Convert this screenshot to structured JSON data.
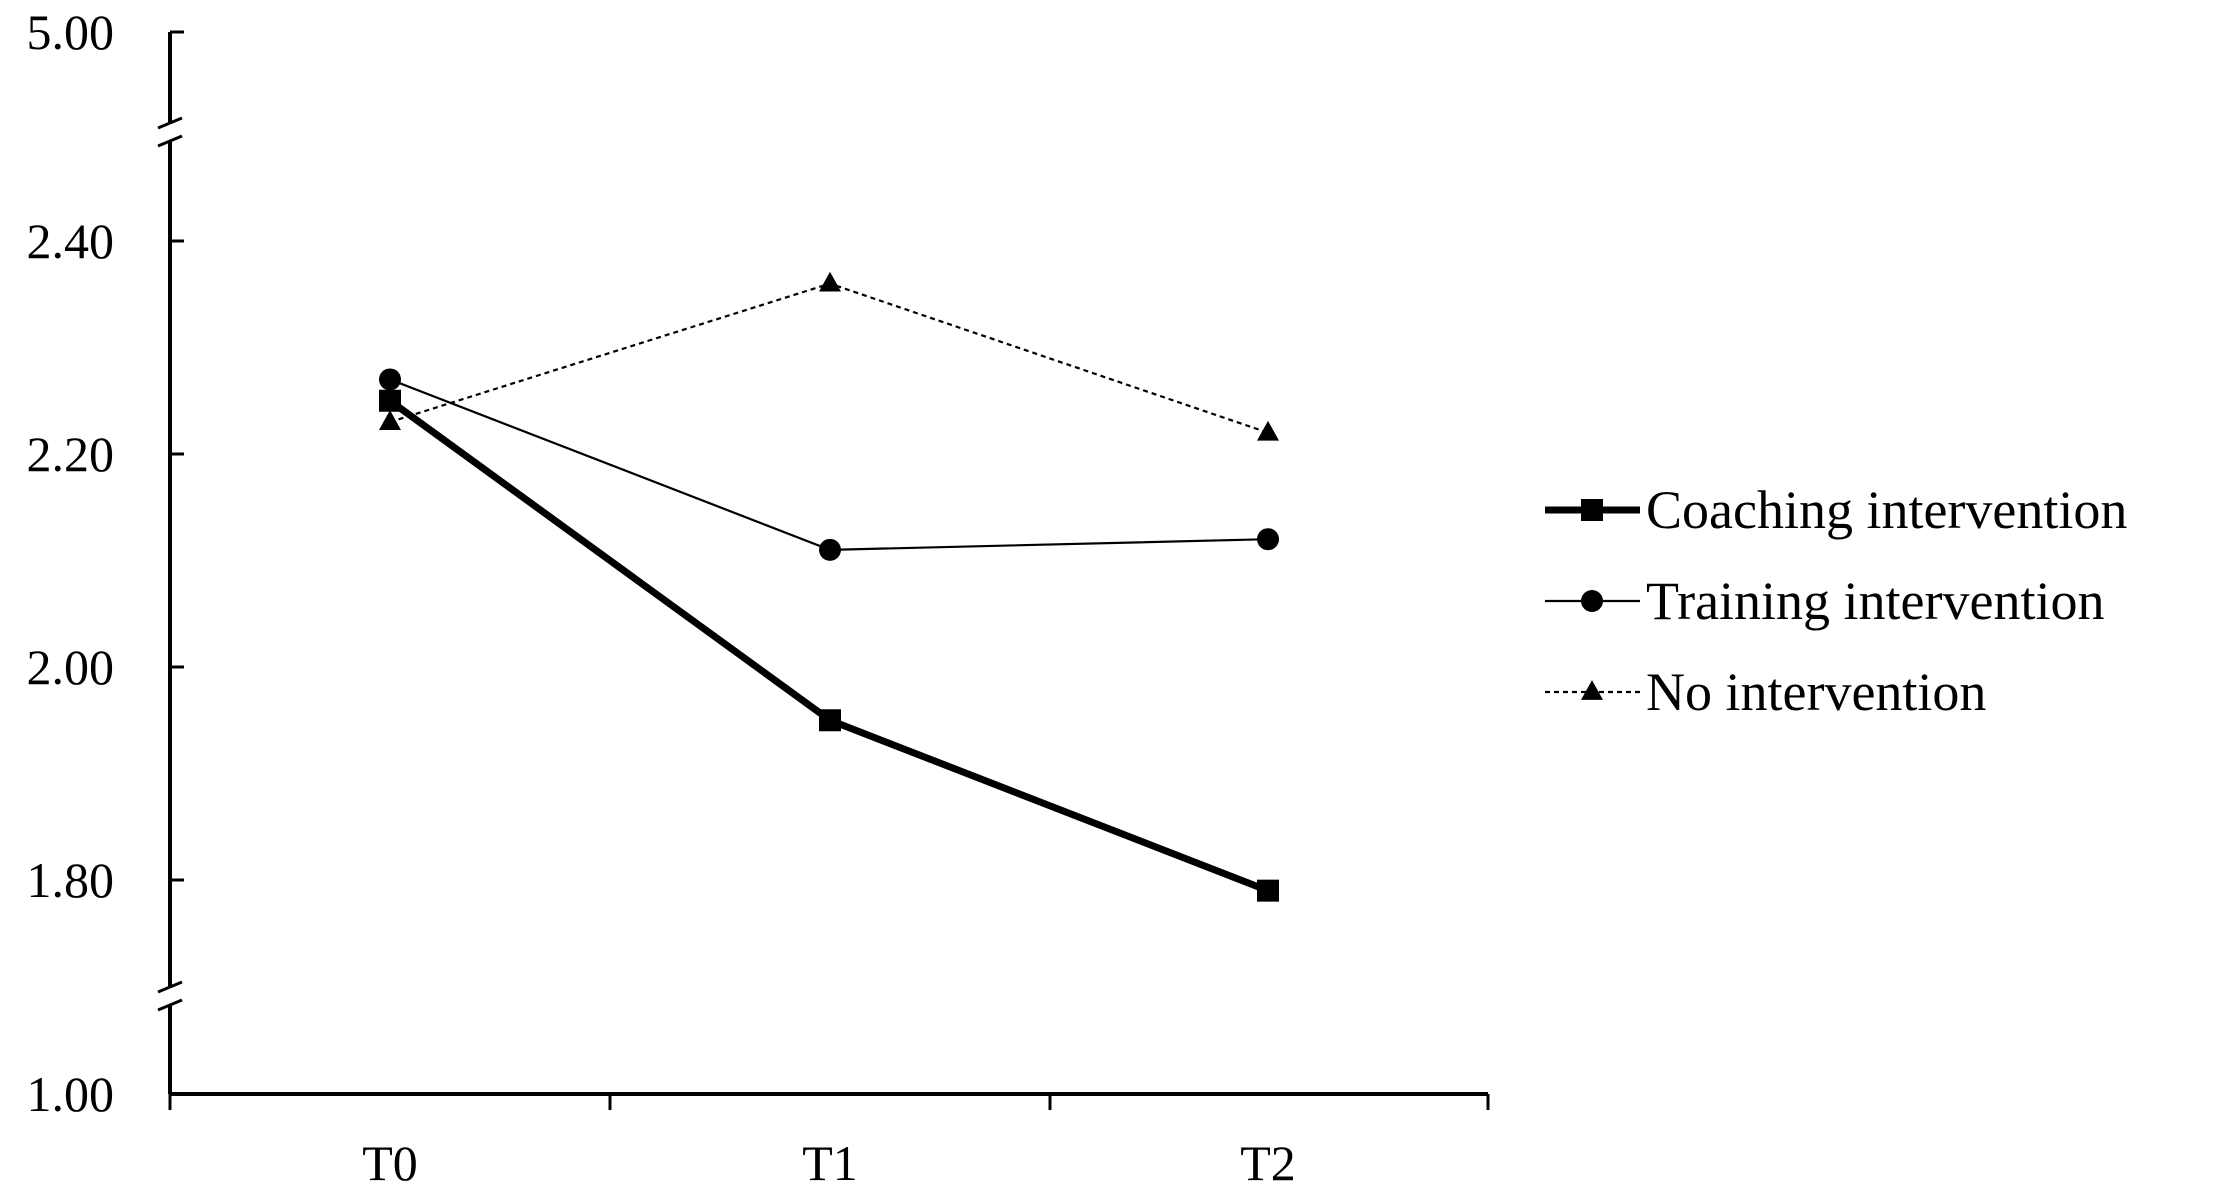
{
  "chart_data": {
    "type": "line",
    "title": "",
    "xlabel": "",
    "ylabel": "",
    "categories": [
      "T0",
      "T1",
      "T2"
    ],
    "y_axis": {
      "broken": true,
      "ticks": [
        "5.00",
        "2.40",
        "2.20",
        "2.00",
        "1.80",
        "1.00"
      ],
      "continuous_range": [
        1.8,
        2.4
      ]
    },
    "series": [
      {
        "name": "Coaching intervention",
        "values": [
          2.25,
          1.95,
          1.79
        ],
        "marker": "square",
        "line": "thick-solid",
        "color": "#000000"
      },
      {
        "name": "Training intervention",
        "values": [
          2.27,
          2.11,
          2.12
        ],
        "marker": "circle",
        "line": "thin-solid",
        "color": "#000000"
      },
      {
        "name": "No intervention",
        "values": [
          2.23,
          2.36,
          2.22
        ],
        "marker": "triangle",
        "line": "dotted",
        "color": "#000000"
      }
    ],
    "legend": "right"
  }
}
